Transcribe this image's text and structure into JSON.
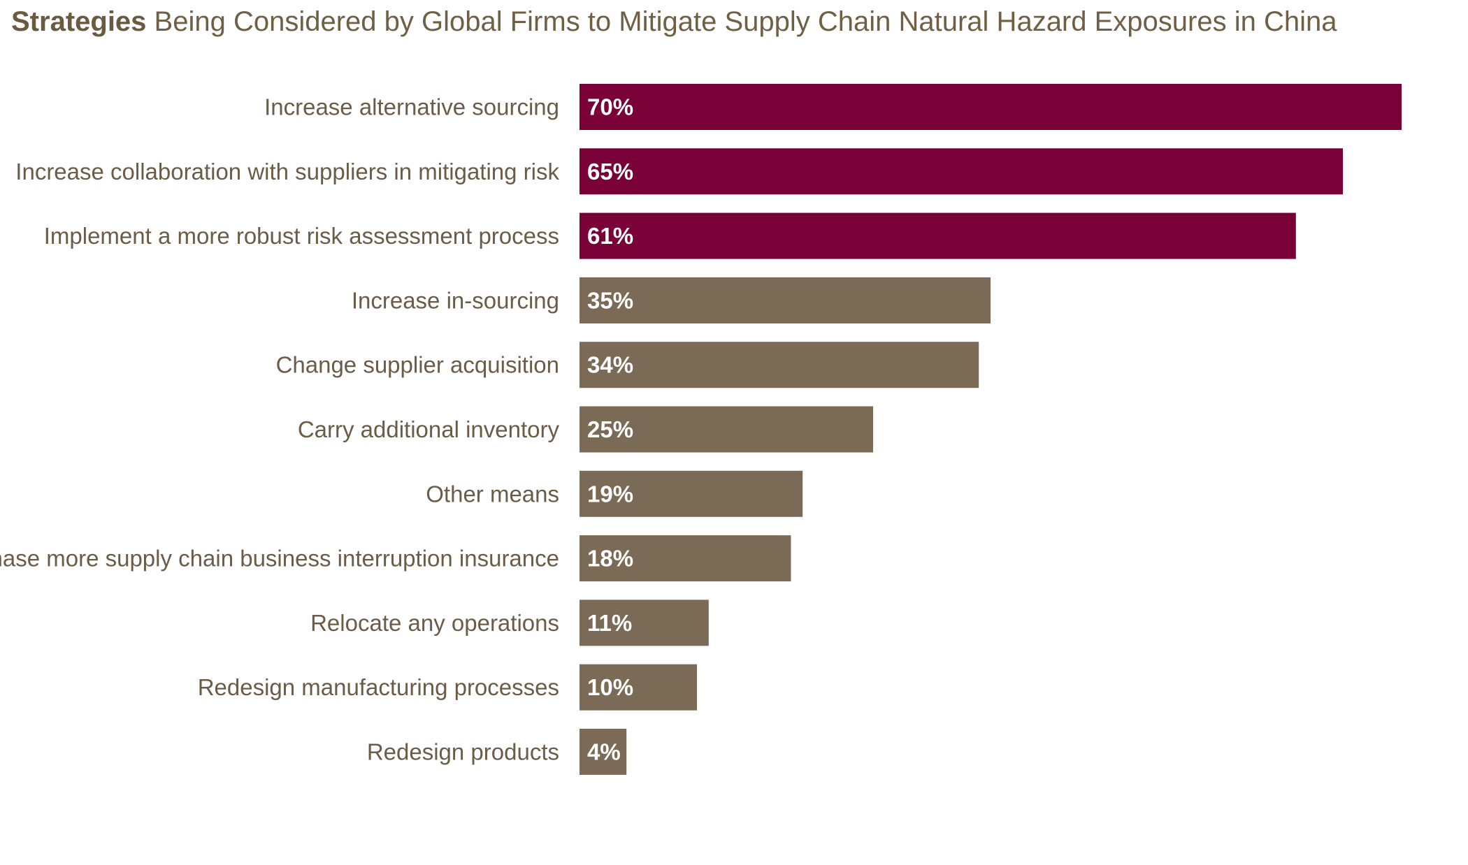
{
  "title": {
    "strong": "Strategies",
    "rest": " Being Considered by Global Firms to Mitigate Supply Chain Natural Hazard Exposures in China"
  },
  "colors": {
    "highlight": "#7a0038",
    "base": "#7b6a55",
    "label_text": "#6b5c48",
    "value_text": "#ffffff"
  },
  "chart_data": {
    "type": "bar",
    "orientation": "horizontal",
    "title": "Strategies Being Considered by Global Firms to Mitigate Supply Chain Natural Hazard Exposures in China",
    "categories": [
      "Increase alternative sourcing",
      "Increase collaboration with suppliers in mitigating risk",
      "Implement a more robust risk assessment process",
      "Increase in-sourcing",
      "Change supplier acquisition",
      "Carry additional inventory",
      "Other means",
      "Purchase more supply chain business interruption insurance",
      "Relocate any operations",
      "Redesign manufacturing processes",
      "Redesign products"
    ],
    "values": [
      70,
      65,
      61,
      35,
      34,
      25,
      19,
      18,
      11,
      10,
      4
    ],
    "value_labels": [
      "70%",
      "65%",
      "61%",
      "35%",
      "34%",
      "25%",
      "19%",
      "18%",
      "11%",
      "10%",
      "4%"
    ],
    "highlighted": [
      true,
      true,
      true,
      false,
      false,
      false,
      false,
      false,
      false,
      false,
      false
    ],
    "unit": "%",
    "xlabel": "",
    "ylabel": "",
    "xlim": [
      0,
      70
    ],
    "grid": false,
    "legend": "none"
  }
}
